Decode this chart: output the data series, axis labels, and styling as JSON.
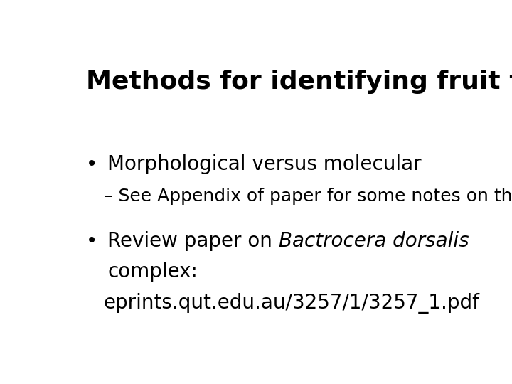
{
  "title": "Methods for identifying fruit flies",
  "title_fontsize": 26,
  "title_fontweight": "bold",
  "background_color": "#ffffff",
  "text_color": "#000000",
  "bullet1_text": "Morphological versus molecular",
  "bullet1_sub": "– See Appendix of paper for some notes on this",
  "bullet2_prefix": "Review paper on ",
  "bullet2_italic": "Bactrocera dorsalis",
  "bullet2_line2": "complex:",
  "bullet2_line3": "eprints.qut.edu.au/3257/1/3257_1.pdf",
  "bullet_fontsize": 20,
  "sub_fontsize": 18,
  "url_fontsize": 20,
  "bullet_symbol": "•"
}
